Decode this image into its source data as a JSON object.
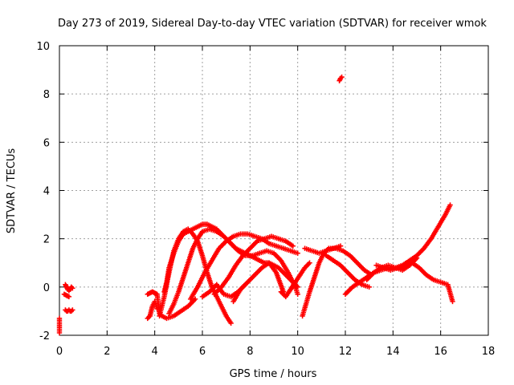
{
  "chart_data": {
    "type": "scatter",
    "title": "Day 273 of 2019, Sidereal Day-to-day VTEC variation (SDTVAR) for receiver wmok",
    "xlabel": "GPS time / hours",
    "ylabel": "SDTVAR / TECUs",
    "xlim": [
      0,
      18
    ],
    "ylim": [
      -2,
      10
    ],
    "x_ticks": [
      "0",
      "2",
      "4",
      "6",
      "8",
      "10",
      "12",
      "14",
      "16",
      "18"
    ],
    "y_ticks": [
      "-2",
      "0",
      "2",
      "4",
      "6",
      "8",
      "10"
    ],
    "grid": true,
    "marker": "plus",
    "marker_color": "#ff0000",
    "series": [
      {
        "name": "s1",
        "x": [
          0.25,
          0.3,
          0.35,
          0.4,
          0.45,
          0.5,
          0.55
        ],
        "y": [
          0.1,
          0.0,
          -0.1,
          -0.15,
          -0.1,
          0.0,
          -0.05
        ]
      },
      {
        "name": "s2",
        "x": [
          0.25,
          0.3,
          0.35,
          0.4,
          0.45,
          0.5,
          0.55
        ],
        "y": [
          -0.95,
          -1.0,
          -1.0,
          -0.95,
          -1.0,
          -1.0,
          -0.95
        ]
      },
      {
        "name": "s3",
        "x": [
          0.2,
          0.3,
          0.4
        ],
        "y": [
          -0.3,
          -0.35,
          -0.4
        ]
      },
      {
        "name": "s4",
        "x": [
          0.0,
          0.0
        ],
        "y": [
          -1.3,
          -1.9
        ]
      },
      {
        "name": "s5",
        "x": [
          11.75,
          11.8,
          11.85
        ],
        "y": [
          8.55,
          8.65,
          8.7
        ]
      },
      {
        "name": "s6",
        "x": [
          3.7,
          3.8,
          3.9,
          4.0,
          4.1,
          4.2,
          4.3,
          4.5,
          4.8,
          5.1,
          5.4,
          5.7
        ],
        "y": [
          -0.3,
          -0.25,
          -0.2,
          -0.25,
          -0.3,
          -1.1,
          -1.2,
          -1.3,
          -1.2,
          -1.0,
          -0.8,
          -0.5
        ]
      },
      {
        "name": "s7",
        "x": [
          3.7,
          3.8,
          3.9,
          4.0,
          4.1
        ],
        "y": [
          -1.3,
          -1.2,
          -0.8,
          -0.6,
          -0.9
        ]
      },
      {
        "name": "s8",
        "x": [
          4.4,
          4.5,
          4.6,
          4.8,
          5.0,
          5.2,
          5.4,
          5.6,
          5.8,
          6.0,
          6.2,
          6.4,
          6.6,
          6.8,
          7.0,
          7.2,
          7.4,
          7.6,
          7.8,
          8.0,
          8.2,
          8.4,
          8.6,
          8.8,
          9.0,
          9.2,
          9.4,
          9.6,
          9.8,
          10.0
        ],
        "y": [
          -0.2,
          0.2,
          0.8,
          1.4,
          1.9,
          2.2,
          2.3,
          2.4,
          2.5,
          2.6,
          2.6,
          2.5,
          2.4,
          2.2,
          2.0,
          1.8,
          1.6,
          1.5,
          1.4,
          1.3,
          1.2,
          1.1,
          1.0,
          1.0,
          0.9,
          0.8,
          0.6,
          0.4,
          0.2,
          0.0
        ]
      },
      {
        "name": "s9",
        "x": [
          4.2,
          4.4,
          4.6,
          4.8,
          5.0,
          5.2,
          5.4,
          5.6,
          5.8,
          6.0,
          6.2,
          6.4,
          6.6,
          6.8,
          7.0,
          7.2
        ],
        "y": [
          -1.2,
          -0.4,
          0.6,
          1.5,
          2.0,
          2.3,
          2.4,
          2.2,
          1.9,
          1.3,
          0.6,
          0.0,
          -0.4,
          -0.8,
          -1.2,
          -1.5
        ]
      },
      {
        "name": "s10",
        "x": [
          4.6,
          4.8,
          5.0,
          5.2,
          5.4,
          5.6,
          5.8,
          6.0,
          6.3,
          6.6,
          6.9,
          7.2,
          7.5,
          7.8,
          8.1,
          8.4,
          8.7,
          9.0,
          9.3,
          9.6,
          9.9,
          10.0
        ],
        "y": [
          -1.1,
          -0.7,
          -0.2,
          0.4,
          1.0,
          1.6,
          2.0,
          2.3,
          2.4,
          2.3,
          2.1,
          1.8,
          1.5,
          1.3,
          1.3,
          1.4,
          1.5,
          1.4,
          1.1,
          0.6,
          0.0,
          -0.3
        ]
      },
      {
        "name": "s11",
        "x": [
          5.5,
          5.8,
          6.1,
          6.4,
          6.7,
          7.0,
          7.3,
          7.6,
          7.9,
          8.2,
          8.5,
          8.8,
          9.1,
          9.4,
          9.7,
          10.0
        ],
        "y": [
          -0.5,
          0.0,
          0.6,
          1.1,
          1.6,
          1.9,
          2.1,
          2.2,
          2.2,
          2.1,
          2.0,
          1.8,
          1.7,
          1.6,
          1.5,
          1.4
        ]
      },
      {
        "name": "s12",
        "x": [
          6.5,
          6.8,
          7.1,
          7.4,
          7.7,
          8.0,
          8.3,
          8.6,
          8.9,
          9.2,
          9.5,
          9.8
        ],
        "y": [
          -0.3,
          0.0,
          0.4,
          0.9,
          1.3,
          1.6,
          1.9,
          2.0,
          2.1,
          2.0,
          1.9,
          1.7
        ]
      },
      {
        "name": "s13",
        "x": [
          7.3,
          7.6,
          7.9,
          8.2,
          8.5,
          8.8,
          9.1,
          9.4
        ],
        "y": [
          -0.6,
          -0.1,
          0.2,
          0.5,
          0.8,
          1.0,
          0.6,
          -0.2
        ]
      },
      {
        "name": "s14",
        "x": [
          6.0,
          6.3,
          6.6,
          6.9,
          7.2,
          7.5,
          7.8
        ],
        "y": [
          -0.4,
          -0.2,
          0.1,
          -0.3,
          -0.4,
          -0.2,
          0.1
        ]
      },
      {
        "name": "s15",
        "x": [
          9.3,
          9.5,
          9.7,
          9.9,
          10.1,
          10.3,
          10.5
        ],
        "y": [
          -0.2,
          -0.4,
          -0.1,
          0.2,
          0.5,
          0.8,
          1.0
        ]
      },
      {
        "name": "s16",
        "x": [
          10.2,
          10.35,
          10.5,
          10.7,
          10.9,
          11.1,
          11.3,
          11.6,
          11.9,
          12.2,
          12.5,
          12.8,
          13.1
        ],
        "y": [
          -1.2,
          -0.7,
          -0.2,
          0.4,
          1.0,
          1.4,
          1.6,
          1.6,
          1.5,
          1.3,
          1.0,
          0.7,
          0.5
        ]
      },
      {
        "name": "s17",
        "x": [
          10.3,
          10.6,
          10.9,
          11.2,
          11.5,
          11.8
        ],
        "y": [
          1.6,
          1.5,
          1.4,
          1.5,
          1.6,
          1.7
        ]
      },
      {
        "name": "s18",
        "x": [
          11.2,
          11.5,
          11.8,
          12.1,
          12.4,
          12.7,
          13.0
        ],
        "y": [
          1.3,
          1.1,
          0.9,
          0.6,
          0.3,
          0.1,
          0.0
        ]
      },
      {
        "name": "s19",
        "x": [
          12.0,
          12.3,
          12.6,
          12.9,
          13.2,
          13.5,
          13.8,
          14.1,
          14.4,
          14.7,
          15.0,
          15.3,
          15.6,
          15.9,
          16.2,
          16.4
        ],
        "y": [
          -0.3,
          0.0,
          0.2,
          0.4,
          0.6,
          0.7,
          0.8,
          0.8,
          0.9,
          1.1,
          1.3,
          1.6,
          2.0,
          2.5,
          3.0,
          3.4
        ]
      },
      {
        "name": "s20",
        "x": [
          13.3,
          13.6,
          13.9,
          14.2,
          14.5,
          14.8,
          15.1,
          15.4,
          15.7,
          16.0,
          16.3,
          16.5
        ],
        "y": [
          0.9,
          0.8,
          0.7,
          0.8,
          0.9,
          1.0,
          0.8,
          0.5,
          0.3,
          0.2,
          0.1,
          -0.6
        ]
      },
      {
        "name": "s21",
        "x": [
          12.9,
          13.2,
          13.5,
          13.8,
          14.1,
          14.4,
          14.7,
          15.0
        ],
        "y": [
          0.3,
          0.6,
          0.8,
          0.9,
          0.8,
          0.7,
          0.9,
          1.2
        ]
      }
    ]
  }
}
